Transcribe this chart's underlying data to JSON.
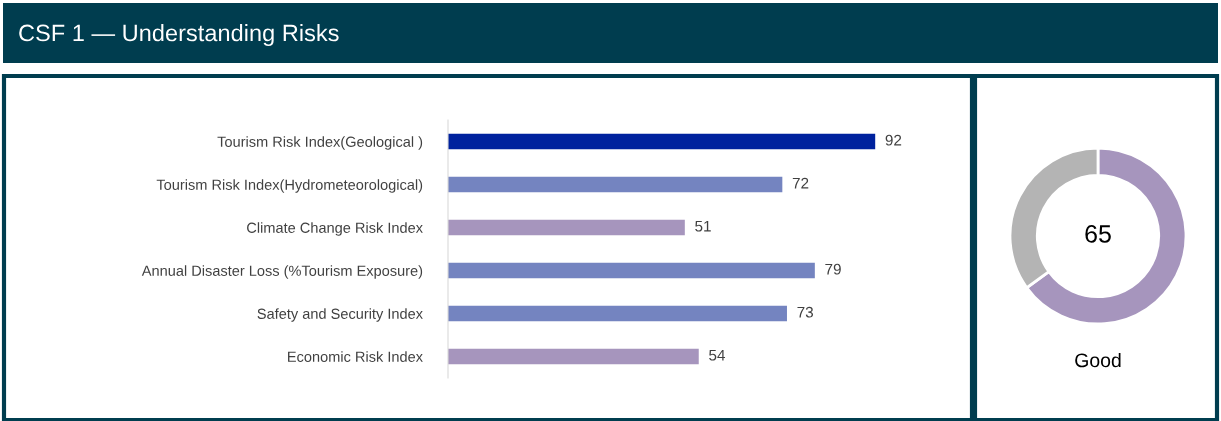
{
  "chart_data": [
    {
      "type": "bar",
      "orientation": "horizontal",
      "title": "CSF 1 — Understanding Risks",
      "categories": [
        "Tourism Risk Index(Geological )",
        "Tourism Risk Index(Hydrometeorological)",
        "Climate Change Risk Index",
        "Annual Disaster Loss (%Tourism Exposure)",
        "Safety and Security Index",
        "Economic Risk Index"
      ],
      "values": [
        92,
        72,
        51,
        79,
        73,
        54
      ],
      "colors": [
        "#00229e",
        "#7484c0",
        "#a695bd",
        "#7484c0",
        "#7484c0",
        "#a695bd"
      ],
      "data_labels": true,
      "grid": false,
      "legend": false
    },
    {
      "type": "donut",
      "categories": [
        null,
        null
      ],
      "values": [
        65,
        35
      ],
      "colors": [
        "#a695bd",
        "#b4b4b4"
      ],
      "value_labels": [
        "65",
        null
      ],
      "annotations": [
        "Good"
      ],
      "legend": false
    }
  ]
}
